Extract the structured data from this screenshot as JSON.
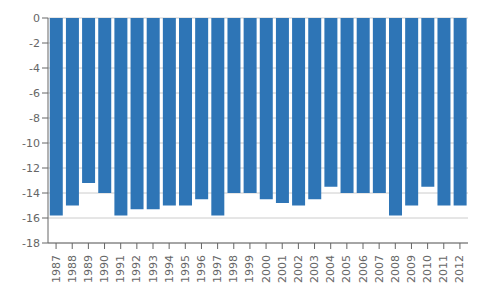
{
  "chart_data": {
    "type": "bar",
    "categories": [
      "1987",
      "1988",
      "1989",
      "1990",
      "1991",
      "1992",
      "1993",
      "1994",
      "1995",
      "1996",
      "1997",
      "1998",
      "1999",
      "2000",
      "2001",
      "2002",
      "2003",
      "2004",
      "2005",
      "2006",
      "2007",
      "2008",
      "2009",
      "2010",
      "2011",
      "2012"
    ],
    "values": [
      -15.8,
      -15.0,
      -13.2,
      -14.0,
      -15.8,
      -15.3,
      -15.3,
      -15.0,
      -15.0,
      -14.5,
      -15.8,
      -14.0,
      -14.0,
      -14.5,
      -14.8,
      -15.0,
      -14.5,
      -13.5,
      -14.0,
      -14.0,
      -14.0,
      -15.8,
      -15.0,
      -13.5,
      -15.0,
      -15.0
    ],
    "color": "#2E75B6",
    "ylim": [
      -18,
      0
    ],
    "yticks": [
      0,
      -2,
      -4,
      -6,
      -8,
      -10,
      -12,
      -14,
      -16,
      -18
    ],
    "grid": true
  }
}
